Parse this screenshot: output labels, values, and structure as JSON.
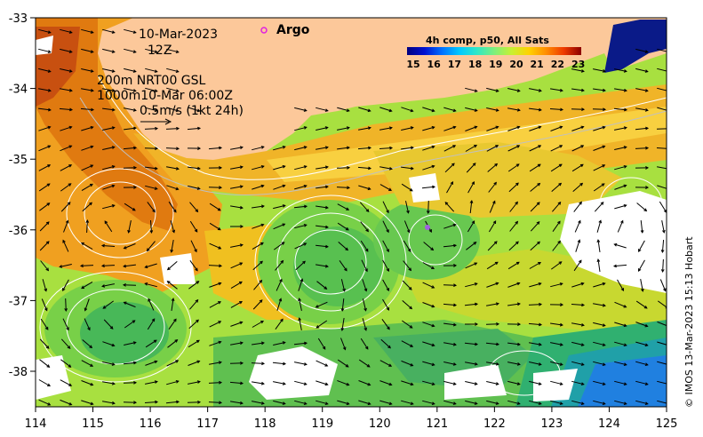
{
  "map": {
    "date": "10-Mar-2023",
    "time": "12Z",
    "contour_line_1": "200m  NRT00 GSL",
    "contour_line_2": "1000m10-Mar 06:00Z",
    "scale_label": "0.5m/s (1kt 24h)",
    "argo_label": "Argo",
    "colorbar": {
      "title": "4h comp, p50, All Sats",
      "ticks": [
        "15",
        "16",
        "17",
        "18",
        "19",
        "20",
        "21",
        "22",
        "23"
      ],
      "colors": [
        "#00007f",
        "#0010d0",
        "#0070ff",
        "#00c8ff",
        "#2ee8c8",
        "#7cf07c",
        "#c8f032",
        "#ffd200",
        "#ff8c00",
        "#ee3a00",
        "#8b0000"
      ]
    },
    "x_ticks": [
      "114",
      "115",
      "116",
      "117",
      "118",
      "119",
      "120",
      "121",
      "122",
      "123",
      "124",
      "125"
    ],
    "y_ticks": [
      "-33",
      "-34",
      "-35",
      "-36",
      "-37",
      "-38"
    ],
    "credit": "© IMOS 13-Mar-2023 15:13 Hobart",
    "colors": {
      "land": "#fcc89a",
      "cloud": "#ffffff",
      "argo": "#e020e0"
    }
  }
}
